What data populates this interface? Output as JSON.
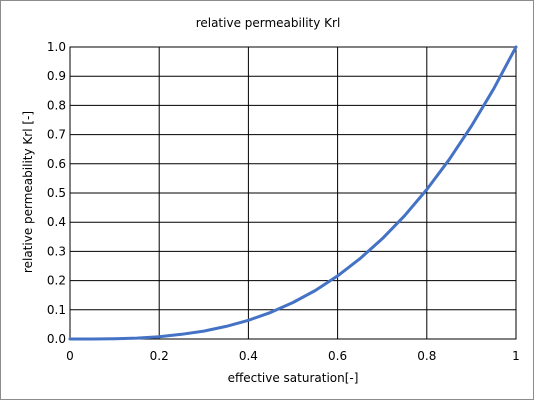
{
  "chart_data": {
    "type": "line",
    "title": "relative permeability  Krl",
    "xlabel": "effective saturation[-]",
    "ylabel": "relative permeability Krl [-]",
    "xlim": [
      0,
      1
    ],
    "ylim": [
      0,
      1
    ],
    "grid": true,
    "x_ticks": [
      "0",
      "0.2",
      "0.4",
      "0.6",
      "0.8",
      "1"
    ],
    "y_ticks": [
      "0.0",
      "0.1",
      "0.2",
      "0.3",
      "0.4",
      "0.5",
      "0.6",
      "0.7",
      "0.8",
      "0.9",
      "1.0"
    ],
    "colors": {
      "line": "#4472c4",
      "grid": "#000000"
    },
    "series": [
      {
        "x": [
          0,
          0.05,
          0.1,
          0.15,
          0.2,
          0.25,
          0.3,
          0.35,
          0.4,
          0.45,
          0.5,
          0.55,
          0.6,
          0.65,
          0.7,
          0.75,
          0.8,
          0.85,
          0.9,
          0.95,
          1.0
        ],
        "values": [
          0,
          0.0,
          0.001,
          0.003,
          0.008,
          0.016,
          0.027,
          0.043,
          0.064,
          0.091,
          0.125,
          0.166,
          0.216,
          0.275,
          0.343,
          0.422,
          0.512,
          0.614,
          0.729,
          0.857,
          1.0
        ]
      }
    ]
  }
}
